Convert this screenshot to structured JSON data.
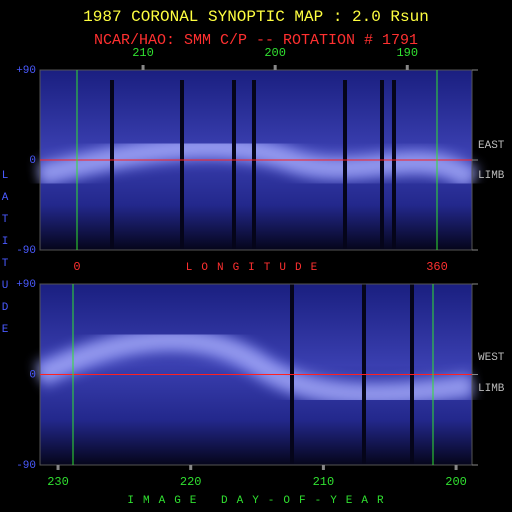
{
  "title": "1987 CORONAL SYNOPTIC MAP : 2.0 Rsun",
  "subtitle": "NCAR/HAO: SMM C/P -- ROTATION # 1791",
  "ylabel": "LATITUDE",
  "chart_data": [
    {
      "type": "image",
      "xlim": [
        217.8,
        185.1
      ],
      "xticks": [
        210,
        200,
        190
      ],
      "x2lim": [
        -37,
        395
      ],
      "x2ticks": [
        0,
        360
      ],
      "x2label": "LONGITUDE",
      "ylim": [
        -90,
        90
      ],
      "yticks": [
        {
          "value": 90,
          "label": "+90"
        },
        0,
        -90
      ],
      "annotations": [
        "EAST",
        "LIMB"
      ]
    },
    {
      "type": "image",
      "xlim": [
        231.36,
        198.8
      ],
      "xticks": [
        230,
        220,
        210,
        200
      ],
      "xlabel": "IMAGE DAY-OF-YEAR",
      "ylim": [
        -90,
        90
      ],
      "yticks": [
        {
          "value": 90,
          "label": "+90"
        },
        0,
        -90
      ],
      "annotations": [
        "WEST",
        "LIMB"
      ]
    }
  ]
}
